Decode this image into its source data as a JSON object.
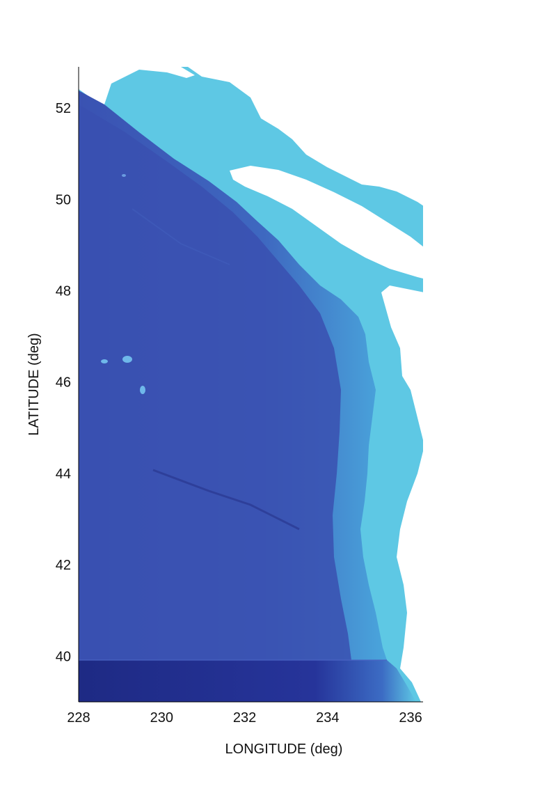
{
  "map": {
    "xlabel": "LONGITUDE (deg)",
    "ylabel": "LATITUDE (deg)",
    "x_ticks": [
      "228",
      "230",
      "232",
      "234",
      "236"
    ],
    "y_ticks": [
      "40",
      "42",
      "44",
      "46",
      "48",
      "50",
      "52"
    ],
    "xlim": [
      228,
      236.3
    ],
    "ylim": [
      39,
      52.9
    ],
    "colors": {
      "deep_ocean": "#3b55b4",
      "deepest_south": "#202c86",
      "slope": "#3f78c8",
      "shelf": "#5ec8e4",
      "land": "#ffffff"
    }
  }
}
